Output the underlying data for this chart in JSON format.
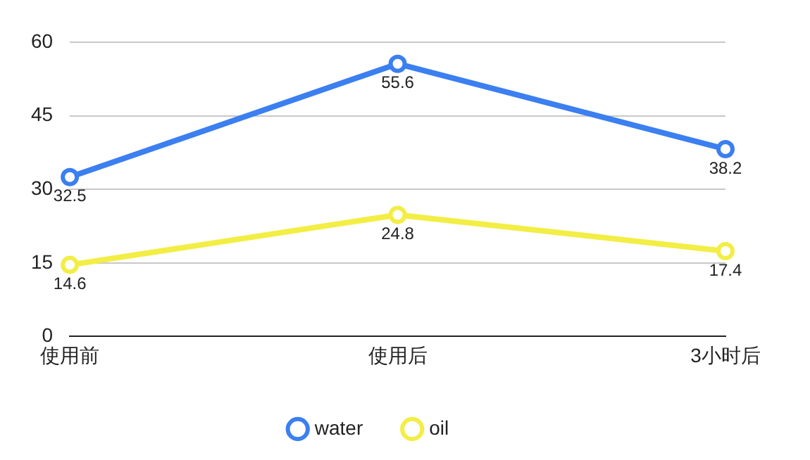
{
  "chart_data": {
    "type": "line",
    "categories": [
      "使用前",
      "使用后",
      "3小时后"
    ],
    "series": [
      {
        "name": "water",
        "color": "#3b7ff0",
        "values": [
          32.5,
          55.6,
          38.2
        ]
      },
      {
        "name": "oil",
        "color": "#f2ee45",
        "values": [
          14.6,
          24.8,
          17.4
        ]
      }
    ],
    "ylim": [
      0,
      60
    ],
    "yticks": [
      0,
      15,
      30,
      45,
      60
    ],
    "grid": "y",
    "legend": "bottom",
    "marker": "circle",
    "line_style": "solid",
    "data_labels": true
  }
}
